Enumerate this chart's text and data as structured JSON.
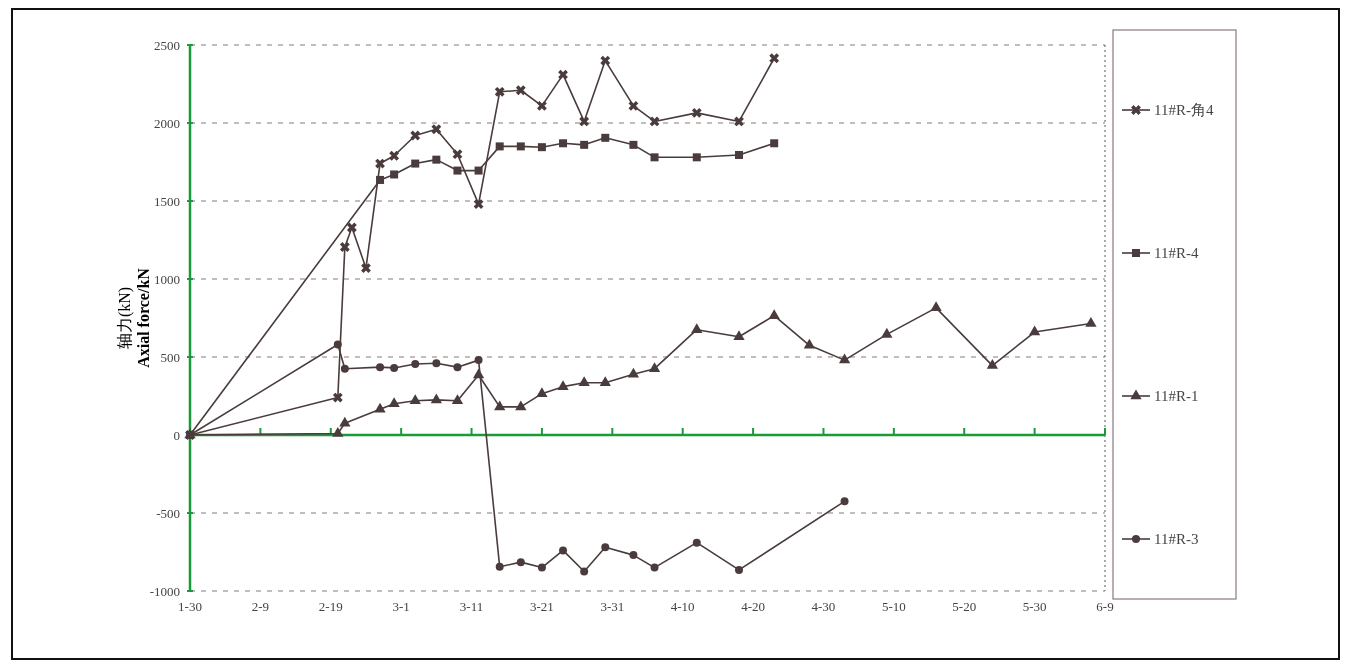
{
  "chart_data": {
    "type": "line",
    "ylabel": "轴力(kN)\nAxial force/kN",
    "xlim": [
      "--01-30",
      "--06-09"
    ],
    "xticks": [
      {
        "value": "--01-30",
        "label": "1-30"
      },
      {
        "value": "--02-09",
        "label": "2-9"
      },
      {
        "value": "--02-19",
        "label": "2-19"
      },
      {
        "value": "--03-01",
        "label": "3-1"
      },
      {
        "value": "--03-11",
        "label": "3-11"
      },
      {
        "value": "--03-21",
        "label": "3-21"
      },
      {
        "value": "--03-31",
        "label": "3-31"
      },
      {
        "value": "--04-10",
        "label": "4-10"
      },
      {
        "value": "--04-20",
        "label": "4-20"
      },
      {
        "value": "--04-30",
        "label": "4-30"
      },
      {
        "value": "--05-10",
        "label": "5-10"
      },
      {
        "value": "--05-20",
        "label": "5-20"
      },
      {
        "value": "--05-30",
        "label": "5-30"
      },
      {
        "value": "--06-09",
        "label": "6-9"
      }
    ],
    "ylim": [
      -1000,
      2500
    ],
    "yticks": [
      -1000,
      -500,
      0,
      500,
      1000,
      1500,
      2000,
      2500
    ],
    "grid": "y",
    "legend": "right",
    "ref_lines": [
      {
        "axis": "y",
        "value": 0,
        "color": "#1a9a3a"
      }
    ],
    "series": [
      {
        "name": "11#R-角4",
        "color": "#4a3c3c",
        "marker": "cross",
        "x": [
          "--01-30",
          "--02-20",
          "--02-21",
          "--02-22",
          "--02-24",
          "--02-26",
          "--02-28",
          "--03-03",
          "--03-06",
          "--03-09",
          "--03-12",
          "--03-15",
          "--03-18",
          "--03-21",
          "--03-24",
          "--03-27",
          "--03-30",
          "--04-03",
          "--04-06",
          "--04-12",
          "--04-18",
          "--04-23"
        ],
        "values": [
          0,
          240,
          1205,
          1330,
          1070,
          1740,
          1790,
          1920,
          1960,
          1800,
          1480,
          2200,
          2210,
          2110,
          2310,
          2010,
          2400,
          2110,
          2010,
          2065,
          2010,
          2415
        ]
      },
      {
        "name": "11#R-4",
        "color": "#4a3c3c",
        "marker": "square",
        "x": [
          "--01-30",
          "--02-26",
          "--02-28",
          "--03-03",
          "--03-06",
          "--03-09",
          "--03-12",
          "--03-15",
          "--03-18",
          "--03-21",
          "--03-24",
          "--03-27",
          "--03-30",
          "--04-03",
          "--04-06",
          "--04-12",
          "--04-18",
          "--04-23"
        ],
        "values": [
          0,
          1635,
          1670,
          1740,
          1765,
          1695,
          1695,
          1850,
          1850,
          1845,
          1870,
          1860,
          1905,
          1860,
          1780,
          1780,
          1795,
          1870
        ]
      },
      {
        "name": "11#R-1",
        "color": "#4a3c3c",
        "marker": "triangle",
        "x": [
          "--01-30",
          "--02-20",
          "--02-21",
          "--02-26",
          "--02-28",
          "--03-03",
          "--03-06",
          "--03-09",
          "--03-12",
          "--03-15",
          "--03-18",
          "--03-21",
          "--03-24",
          "--03-27",
          "--03-30",
          "--04-03",
          "--04-06",
          "--04-12",
          "--04-18",
          "--04-23",
          "--04-28",
          "--05-03",
          "--05-09",
          "--05-16",
          "--05-24",
          "--05-30",
          "--06-07"
        ],
        "values": [
          0,
          10,
          75,
          165,
          200,
          220,
          225,
          220,
          385,
          180,
          180,
          265,
          310,
          335,
          335,
          390,
          425,
          675,
          630,
          765,
          575,
          480,
          645,
          815,
          445,
          660,
          715
        ]
      },
      {
        "name": "11#R-3",
        "color": "#4a3c3c",
        "marker": "circle",
        "x": [
          "--01-30",
          "--02-20",
          "--02-21",
          "--02-26",
          "--02-28",
          "--03-03",
          "--03-06",
          "--03-09",
          "--03-12",
          "--03-15",
          "--03-18",
          "--03-21",
          "--03-24",
          "--03-27",
          "--03-30",
          "--04-03",
          "--04-06",
          "--04-12",
          "--04-18",
          "--05-03"
        ],
        "values": [
          0,
          580,
          425,
          435,
          430,
          455,
          460,
          435,
          480,
          -845,
          -815,
          -850,
          -740,
          -875,
          -720,
          -770,
          -850,
          -690,
          -865,
          -425
        ]
      }
    ]
  }
}
